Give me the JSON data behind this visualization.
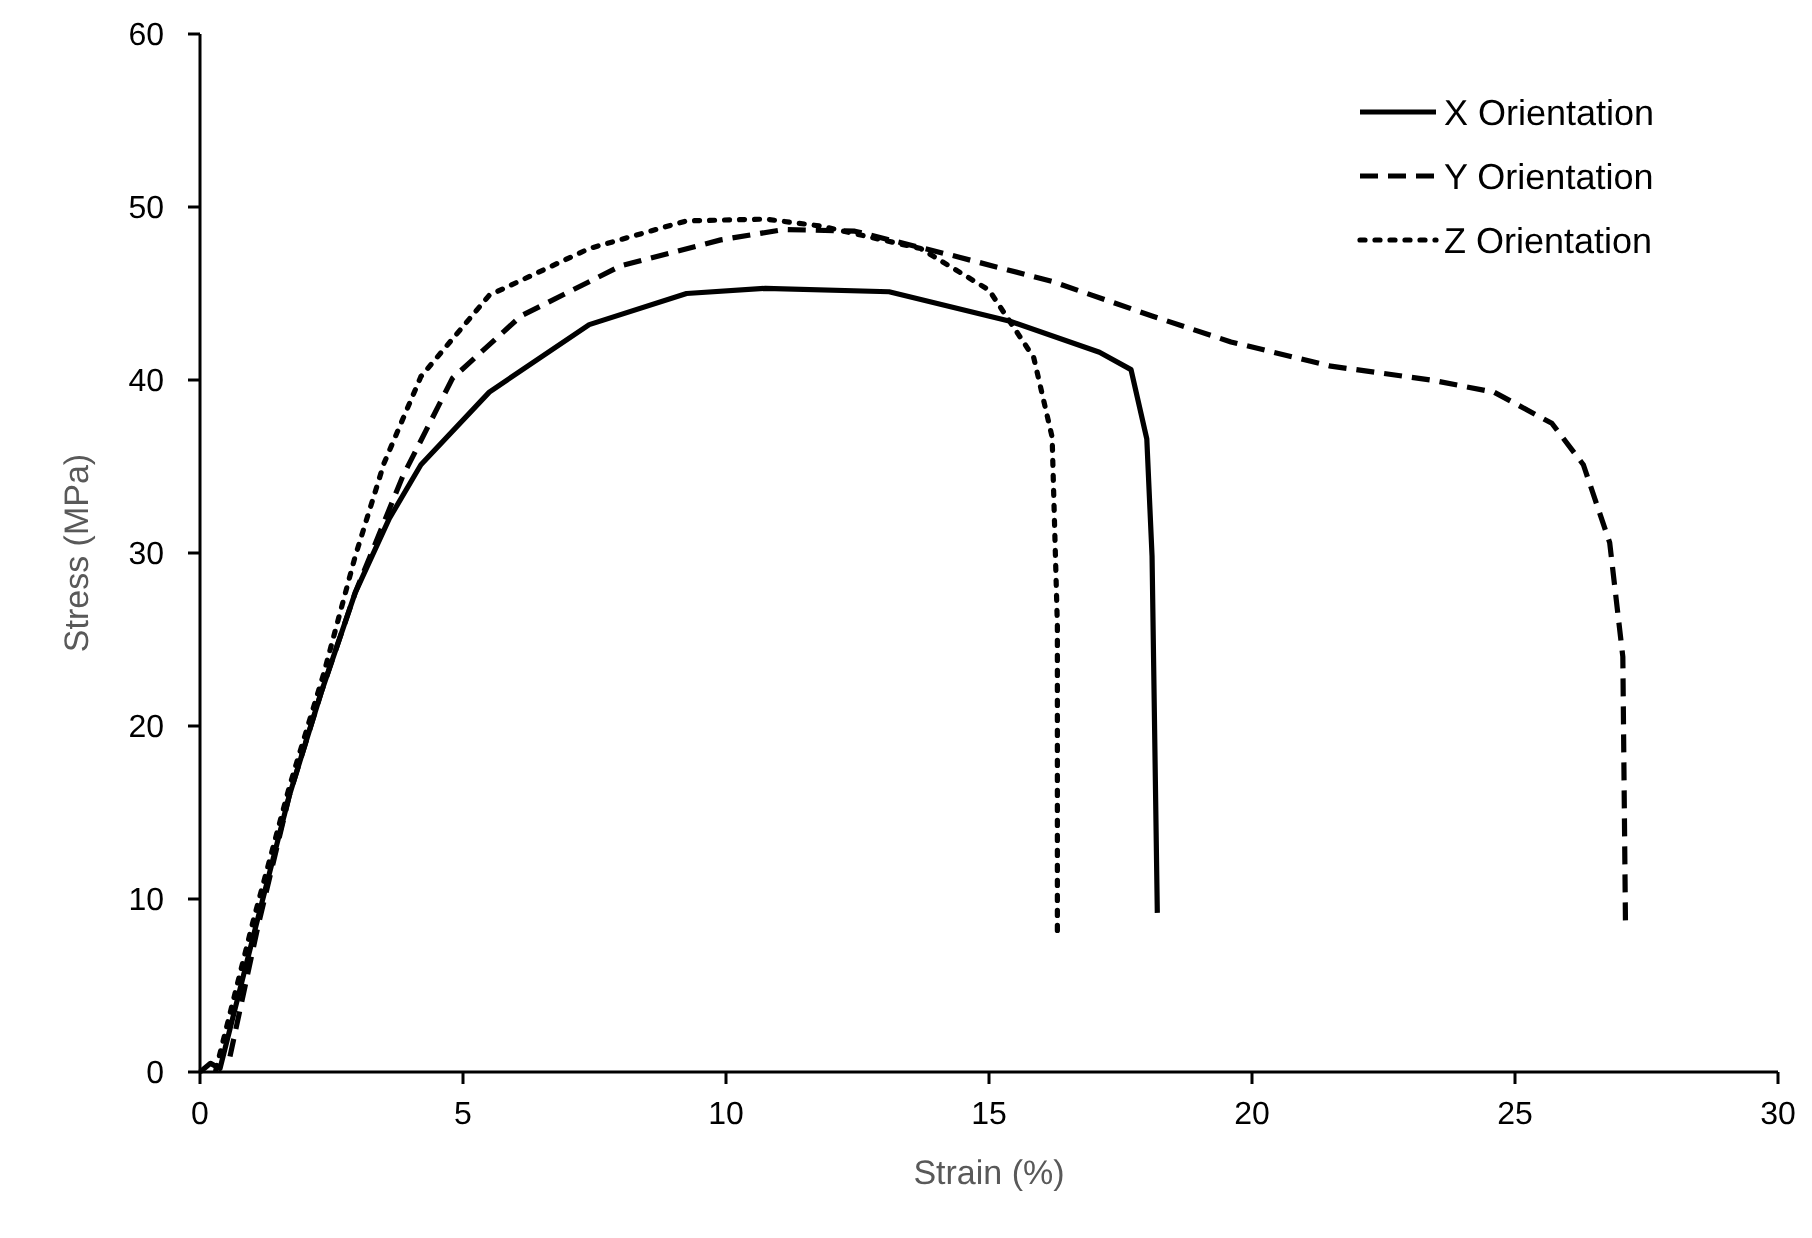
{
  "chart_data": {
    "type": "line",
    "xlabel": "Strain (%)",
    "ylabel": "Stress (MPa)",
    "xlim": [
      0,
      30
    ],
    "ylim": [
      0,
      60
    ],
    "xticks": [
      0,
      5,
      10,
      15,
      20,
      25,
      30
    ],
    "yticks": [
      0,
      10,
      20,
      30,
      40,
      50,
      60
    ],
    "grid": false,
    "legend": "top right",
    "marker": "none",
    "series": [
      {
        "name": "X Orientation",
        "color": "#000000",
        "line_style": "solid",
        "x": [
          0,
          0.2,
          0.38,
          1.06,
          1.7,
          2.3,
          2.95,
          3.6,
          4.2,
          5.5,
          7.4,
          9.25,
          10.75,
          13.1,
          15.4,
          17.1,
          17.7,
          18.0,
          18.1,
          18.2
        ],
        "values": [
          0,
          0.5,
          0.2,
          8.4,
          16,
          21.9,
          27.7,
          32,
          35.1,
          39.3,
          43.2,
          45,
          45.3,
          45.1,
          43.4,
          41.6,
          40.6,
          36.6,
          29.8,
          9.2
        ]
      },
      {
        "name": "Y Orientation",
        "color": "#000000",
        "line_style": "dashed",
        "x": [
          0.57,
          1.1,
          1.7,
          2.3,
          2.95,
          3.85,
          4.8,
          6.1,
          8.0,
          9.9,
          11.1,
          12.45,
          14.3,
          16.2,
          18.1,
          19.6,
          21.5,
          23.4,
          24.6,
          25.7,
          26.3,
          26.8,
          27.05,
          27.1
        ],
        "values": [
          0.9,
          8.4,
          16,
          21.9,
          27.7,
          34.4,
          40.1,
          43.7,
          46.6,
          48.1,
          48.7,
          48.6,
          47.2,
          45.7,
          43.7,
          42.2,
          40.8,
          40.0,
          39.3,
          37.5,
          35.1,
          30.6,
          24,
          8.7
        ]
      },
      {
        "name": "Z Orientation",
        "color": "#000000",
        "line_style": "dotted",
        "x": [
          0.3,
          1.0,
          1.7,
          2.35,
          2.95,
          3.5,
          4.2,
          5.5,
          7.4,
          9.25,
          10.75,
          11.8,
          13.7,
          15.0,
          15.85,
          16.2,
          16.3,
          16.3
        ],
        "values": [
          0.1,
          8.6,
          16.5,
          23,
          29.8,
          35.2,
          40.2,
          44.9,
          47.6,
          49.2,
          49.3,
          48.9,
          47.6,
          45.2,
          41.3,
          36.7,
          25.8,
          8.1
        ]
      }
    ]
  }
}
